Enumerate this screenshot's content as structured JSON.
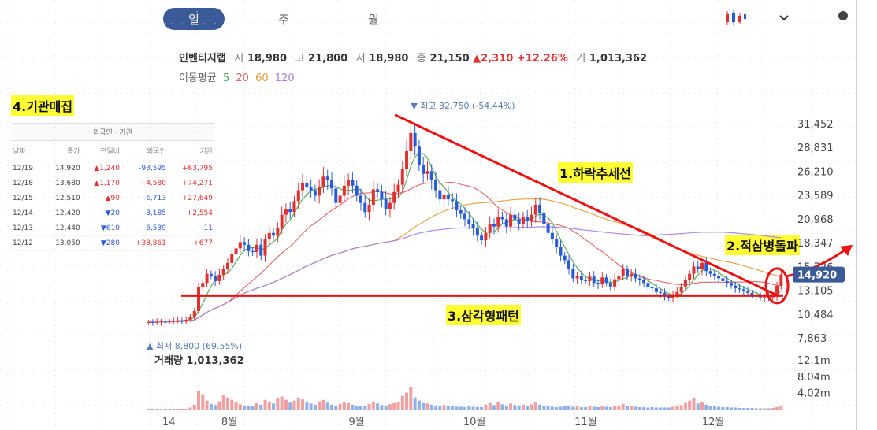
{
  "tabs": [
    {
      "label": "일",
      "active": true
    },
    {
      "label": "주",
      "active": false
    },
    {
      "label": "월",
      "active": false
    }
  ],
  "toolbar": {
    "chart_type_icon": "candlestick-icon",
    "dropdown_icon": "chevron-down-icon"
  },
  "stock": {
    "name": "인벤티지랩",
    "open_label": "시",
    "open": "18,980",
    "high_label": "고",
    "high": "21,800",
    "low_label": "저",
    "low": "18,980",
    "close_label": "종",
    "close": "21,150",
    "change": "▲2,310 +12.26%",
    "volume_label": "거",
    "volume": "1,013,362"
  },
  "moving_average": {
    "label": "이동평균",
    "periods": [
      "5",
      "20",
      "60",
      "120"
    ],
    "colors": [
      "#44aa44",
      "#e06060",
      "#e69a3a",
      "#a87be0"
    ]
  },
  "annotations": {
    "downtrend": "1.하락추세선",
    "breakout": "2.적삼병돌파",
    "triangle": "3.삼각형패턴",
    "institutional": "4.기관매집"
  },
  "institutional_table": {
    "title": "외국인 · 기관",
    "headers": [
      "날짜",
      "종가",
      "전일비",
      "외국인",
      "기관"
    ],
    "rows": [
      {
        "date": "12/19",
        "close": "14,920",
        "change": "▲1,240",
        "foreign": "-93,595",
        "inst": "+63,795"
      },
      {
        "date": "12/18",
        "close": "13,680",
        "change": "▲1,170",
        "foreign": "+4,580",
        "inst": "+74,271"
      },
      {
        "date": "12/15",
        "close": "12,510",
        "change": "▲90",
        "foreign": "-6,713",
        "inst": "+27,649"
      },
      {
        "date": "12/14",
        "close": "12,420",
        "change": "▼20",
        "foreign": "-3,185",
        "inst": "+2,554"
      },
      {
        "date": "12/13",
        "close": "12,440",
        "change": "▼610",
        "foreign": "-6,539",
        "inst": "-11"
      },
      {
        "date": "12/12",
        "close": "13,050",
        "change": "▼280",
        "foreign": "+38,861",
        "inst": "+677"
      }
    ]
  },
  "volume_panel": {
    "label": "거래량",
    "value": "1,013,362"
  },
  "colors": {
    "up": "#e03030",
    "down": "#2a5bd7",
    "tab_active": "#3b5a98",
    "current_price_bg": "#3b5a98",
    "trendline": "#ee1111",
    "highlight": "#ffff33"
  },
  "chart_data": {
    "type": "candlestick",
    "title": "",
    "xlabel": "",
    "ylabel": "",
    "price_ticks": [
      "31,452",
      "28,831",
      "26,210",
      "23,589",
      "20,968",
      "18,347",
      "15,726",
      "13,105",
      "10,484",
      "7,863"
    ],
    "price_tick_values": [
      31452,
      28831,
      26210,
      23589,
      20968,
      18347,
      15726,
      13105,
      10484,
      7863
    ],
    "volume_ticks": [
      "12.1m",
      "8.04m",
      "4.02m"
    ],
    "volume_tick_values": [
      12.1,
      8.04,
      4.02
    ],
    "x_ticks": [
      "14",
      "8월",
      "9월",
      "10월",
      "11월",
      "12월"
    ],
    "high_marker": "최고 32,750 (-54.44%)",
    "high_value": 32750,
    "low_marker": "최저 8,800 (69.55%)",
    "low_value": 8800,
    "current_price": "14,920",
    "current_value": 14920,
    "ylim": [
      7000,
      33000
    ],
    "trendline_downtrend": [
      {
        "x": 0.39,
        "y": 32500
      },
      {
        "x": 0.99,
        "y": 12650
      }
    ],
    "triangle_support": 12600,
    "closes": [
      9700,
      9650,
      9700,
      9750,
      9720,
      9800,
      9850,
      9900,
      9850,
      9950,
      10300,
      10900,
      13500,
      14000,
      15000,
      14800,
      14200,
      14900,
      15500,
      16200,
      17200,
      17800,
      18500,
      18200,
      17500,
      17400,
      18200,
      17000,
      18800,
      19500,
      19200,
      20000,
      21500,
      22100,
      21800,
      23000,
      24200,
      25000,
      24500,
      24200,
      23600,
      24600,
      25700,
      25300,
      24400,
      22800,
      23600,
      24700,
      25300,
      24700,
      23600,
      22800,
      21800,
      22600,
      24300,
      24000,
      23200,
      22100,
      22800,
      24000,
      24800,
      26500,
      28500,
      30500,
      29000,
      27000,
      26000,
      26300,
      25300,
      24200,
      23200,
      23700,
      23200,
      23000,
      22000,
      21600,
      21000,
      20500,
      20000,
      19200,
      18700,
      19500,
      20500,
      20200,
      21300,
      21000,
      20200,
      21500,
      21000,
      20500,
      21300,
      20800,
      21500,
      22600,
      21700,
      20500,
      19500,
      18800,
      18000,
      17000,
      16500,
      15500,
      14500,
      14800,
      14300,
      14200,
      14700,
      14000,
      13900,
      14600,
      14000,
      13600,
      14400,
      14800,
      15500,
      14700,
      15000,
      14500,
      14300,
      14000,
      13500,
      13400,
      13000,
      12900,
      12500,
      12300,
      12700,
      13000,
      13600,
      14300,
      15000,
      15800,
      15500,
      16200,
      15300,
      15000,
      14800,
      14500,
      14200,
      14000,
      13700,
      13400,
      13300,
      13100,
      12900,
      12700,
      12500,
      12400,
      12440,
      12420,
      12510,
      13680,
      14920
    ],
    "volumes": [
      0.2,
      0.2,
      0.2,
      0.2,
      0.2,
      0.2,
      0.2,
      0.2,
      0.2,
      0.2,
      0.5,
      1.2,
      4.5,
      3.8,
      2.2,
      1.4,
      1.1,
      2.0,
      3.5,
      3.0,
      2.4,
      1.8,
      1.3,
      1.0,
      0.9,
      0.8,
      1.6,
      1.2,
      2.4,
      2.0,
      1.5,
      2.7,
      3.2,
      2.4,
      1.7,
      2.2,
      3.0,
      2.5,
      1.8,
      1.5,
      1.2,
      2.0,
      2.4,
      1.7,
      1.2,
      0.9,
      1.4,
      1.9,
      1.6,
      1.2,
      0.9,
      0.8,
      1.0,
      1.4,
      2.0,
      1.5,
      1.1,
      1.0,
      1.3,
      1.6,
      1.8,
      3.4,
      4.2,
      5.5,
      3.0,
      2.2,
      1.6,
      1.5,
      1.2,
      1.0,
      0.9,
      1.1,
      0.9,
      0.8,
      0.7,
      0.7,
      0.6,
      0.8,
      0.7,
      0.6,
      0.6,
      1.2,
      1.6,
      1.1,
      1.8,
      1.3,
      1.0,
      1.5,
      1.1,
      0.9,
      1.2,
      0.9,
      1.3,
      1.8,
      1.2,
      0.9,
      0.8,
      0.7,
      0.6,
      0.7,
      0.8,
      0.9,
      0.7,
      0.8,
      0.6,
      0.6,
      0.9,
      0.7,
      0.6,
      0.8,
      0.7,
      0.6,
      0.9,
      1.0,
      1.4,
      0.9,
      0.8,
      0.7,
      0.6,
      0.6,
      0.5,
      0.6,
      0.5,
      0.5,
      0.5,
      0.5,
      0.7,
      0.8,
      1.1,
      1.6,
      2.2,
      2.8,
      1.5,
      1.8,
      1.2,
      0.9,
      0.8,
      0.7,
      0.6,
      0.6,
      0.5,
      0.5,
      0.4,
      0.4,
      0.4,
      0.4,
      0.3,
      0.3,
      0.3,
      0.3,
      0.4,
      0.6,
      1.0
    ]
  }
}
